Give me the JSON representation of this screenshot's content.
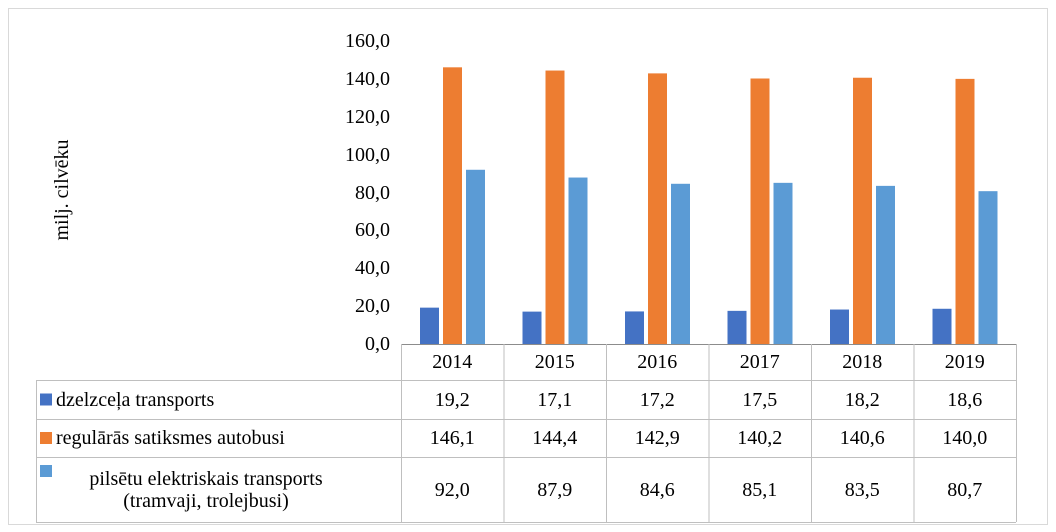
{
  "chart_data": {
    "type": "bar",
    "y_label": "milj. cilvēku",
    "categories": [
      "2014",
      "2015",
      "2016",
      "2017",
      "2018",
      "2019"
    ],
    "series": [
      {
        "name": "dzelzceļa transports",
        "color": "#4472c4",
        "values": [
          19.2,
          17.1,
          17.2,
          17.5,
          18.2,
          18.6
        ],
        "value_labels": [
          "19,2",
          "17,1",
          "17,2",
          "17,5",
          "18,2",
          "18,6"
        ]
      },
      {
        "name": "regulārās satiksmes autobusi",
        "color": "#ed7d31",
        "values": [
          146.1,
          144.4,
          142.9,
          140.2,
          140.6,
          140.0
        ],
        "value_labels": [
          "146,1",
          "144,4",
          "142,9",
          "140,2",
          "140,6",
          "140,0"
        ]
      },
      {
        "name": "pilsētu elektriskais transports (tramvaji, trolejbusi)",
        "color": "#5b9bd5",
        "values": [
          92.0,
          87.9,
          84.6,
          85.1,
          83.5,
          80.7
        ],
        "value_labels": [
          "92,0",
          "87,9",
          "84,6",
          "85,1",
          "83,5",
          "80,7"
        ]
      }
    ],
    "ylim": [
      0,
      160
    ],
    "yticks": [
      {
        "value": 0,
        "label": "0,0"
      },
      {
        "value": 20,
        "label": "20,0"
      },
      {
        "value": 40,
        "label": "40,0"
      },
      {
        "value": 60,
        "label": "60,0"
      },
      {
        "value": 80,
        "label": "80,0"
      },
      {
        "value": 100,
        "label": "100,0"
      },
      {
        "value": 120,
        "label": "120,0"
      },
      {
        "value": 140,
        "label": "140,0"
      },
      {
        "value": 160,
        "label": "160,0"
      }
    ]
  }
}
